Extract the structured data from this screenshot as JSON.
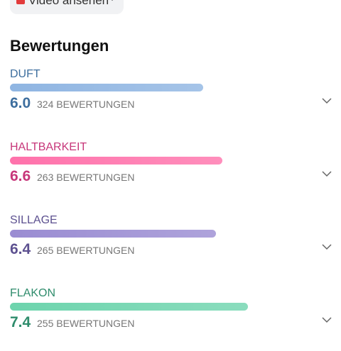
{
  "button": {
    "label": "Video ansehen"
  },
  "heading": "Bewertungen",
  "ratings": [
    {
      "name": "DUFT",
      "score": "6.0",
      "votes": "324 BEWERTUNGEN",
      "color": "#3d6e9e",
      "bar_color": "#8fb5e2"
    },
    {
      "name": "HALTBARKEIT",
      "score": "6.6",
      "votes": "263 BEWERTUNGEN",
      "color": "#c7377a",
      "bar_color": "#ff72ab"
    },
    {
      "name": "SILLAGE",
      "score": "6.4",
      "votes": "265 BEWERTUNGEN",
      "color": "#5d5190",
      "bar_color": "#9a8cd2"
    },
    {
      "name": "FLAKON",
      "score": "7.4",
      "votes": "255 BEWERTUNGEN",
      "color": "#2f8c6c",
      "bar_color": "#6dd4ad"
    }
  ]
}
